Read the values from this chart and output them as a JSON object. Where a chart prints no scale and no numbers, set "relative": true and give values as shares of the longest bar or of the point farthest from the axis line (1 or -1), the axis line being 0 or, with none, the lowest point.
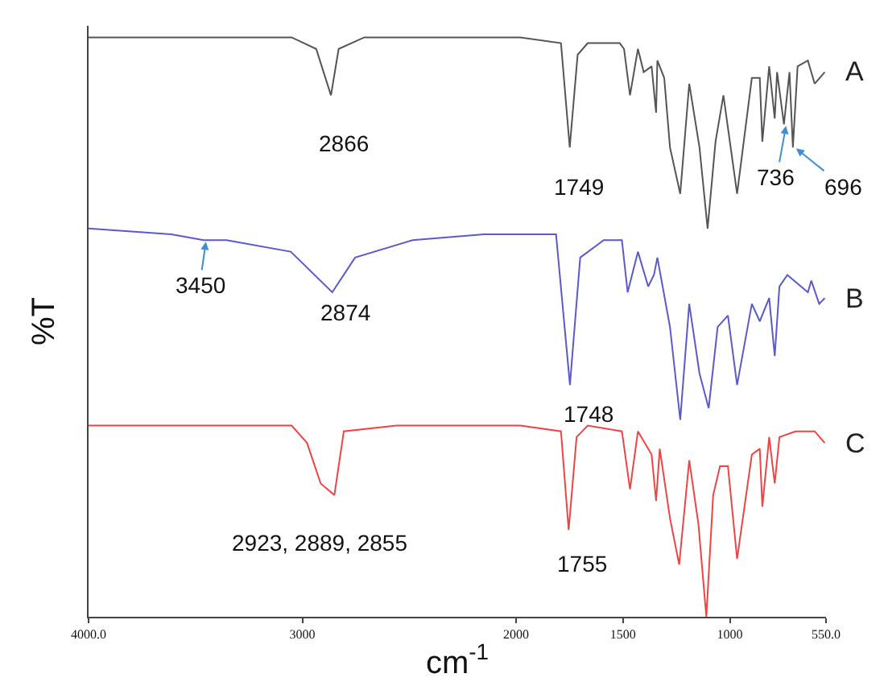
{
  "chart_data": {
    "type": "line",
    "relative": true,
    "xlabel": "cm$^{-1}$",
    "ylabel": "%T",
    "legend": false,
    "grid": false,
    "marker": "none",
    "line_style": "solid",
    "xlim": [
      4000,
      550
    ],
    "xticks": [
      {
        "value": 4000,
        "label": "4000.0"
      },
      3000,
      2000,
      1500,
      1000,
      {
        "value": 550,
        "label": "550.0"
      }
    ],
    "series": [
      {
        "name": "A",
        "color": "#555555",
        "x": [
          4000,
          3050,
          2935,
          2866,
          2830,
          2710,
          1980,
          1790,
          1749,
          1712,
          1665,
          1515,
          1495,
          1467,
          1430,
          1403,
          1366,
          1345,
          1339,
          1307,
          1280,
          1232,
          1190,
          1142,
          1104,
          1067,
          1030,
          966,
          897,
          860,
          848,
          816,
          790,
          779,
          747,
          721,
          705,
          683,
          635,
          603,
          556
        ],
        "values": [
          1.0,
          1.0,
          0.98,
          0.9,
          0.98,
          1.0,
          1.0,
          0.99,
          0.81,
          0.97,
          0.99,
          0.99,
          0.98,
          0.9,
          0.98,
          0.94,
          0.95,
          0.87,
          0.96,
          0.93,
          0.81,
          0.73,
          0.92,
          0.81,
          0.67,
          0.82,
          0.9,
          0.73,
          0.93,
          0.93,
          0.82,
          0.95,
          0.86,
          0.94,
          0.85,
          0.94,
          0.81,
          0.95,
          0.96,
          0.92,
          0.94
        ]
      },
      {
        "name": "B",
        "color": "#5a5acc",
        "x": [
          4000,
          3613,
          3462,
          3355,
          3054,
          2860,
          2753,
          2484,
          2150,
          1813,
          1748,
          1700,
          1590,
          1505,
          1478,
          1430,
          1382,
          1355,
          1339,
          1280,
          1232,
          1190,
          1142,
          1099,
          1057,
          1009,
          966,
          897,
          860,
          816,
          790,
          768,
          731,
          635,
          619,
          582,
          556
        ],
        "values": [
          0.67,
          0.66,
          0.65,
          0.65,
          0.63,
          0.56,
          0.62,
          0.65,
          0.66,
          0.66,
          0.4,
          0.62,
          0.65,
          0.65,
          0.56,
          0.63,
          0.57,
          0.59,
          0.62,
          0.5,
          0.34,
          0.54,
          0.42,
          0.36,
          0.5,
          0.52,
          0.4,
          0.54,
          0.51,
          0.55,
          0.45,
          0.57,
          0.59,
          0.56,
          0.58,
          0.54,
          0.55
        ]
      },
      {
        "name": "C",
        "color": "#ee4444",
        "x": [
          4000,
          3050,
          2978,
          2914,
          2882,
          2850,
          2806,
          2559,
          1980,
          1790,
          1754,
          1717,
          1665,
          1505,
          1467,
          1430,
          1366,
          1345,
          1328,
          1280,
          1237,
          1190,
          1147,
          1110,
          1078,
          1046,
          1009,
          966,
          897,
          860,
          848,
          816,
          790,
          768,
          693,
          603,
          556
        ],
        "values": [
          0.33,
          0.33,
          0.3,
          0.23,
          0.22,
          0.21,
          0.32,
          0.33,
          0.33,
          0.32,
          0.15,
          0.31,
          0.33,
          0.32,
          0.22,
          0.32,
          0.28,
          0.2,
          0.29,
          0.17,
          0.09,
          0.27,
          0.16,
          0.0,
          0.21,
          0.26,
          0.26,
          0.1,
          0.28,
          0.29,
          0.19,
          0.31,
          0.23,
          0.31,
          0.32,
          0.32,
          0.3
        ]
      }
    ],
    "annotations": [
      {
        "text": "2866",
        "x": 2866,
        "y": 0.9
      },
      {
        "text": "1749",
        "x": 1749,
        "y": 0.81
      },
      {
        "text": "736",
        "x": 736,
        "y": 0.85
      },
      {
        "text": "696",
        "x": 696,
        "y": 0.81
      },
      {
        "text": "3450",
        "x": 3450,
        "y": 0.65
      },
      {
        "text": "2874",
        "x": 2874,
        "y": 0.56
      },
      {
        "text": "1748",
        "x": 1748,
        "y": 0.4
      },
      {
        "text": "2923, 2889, 2855",
        "x": 2889,
        "y": 0.22
      },
      {
        "text": "1755",
        "x": 1755,
        "y": 0.15
      }
    ]
  }
}
